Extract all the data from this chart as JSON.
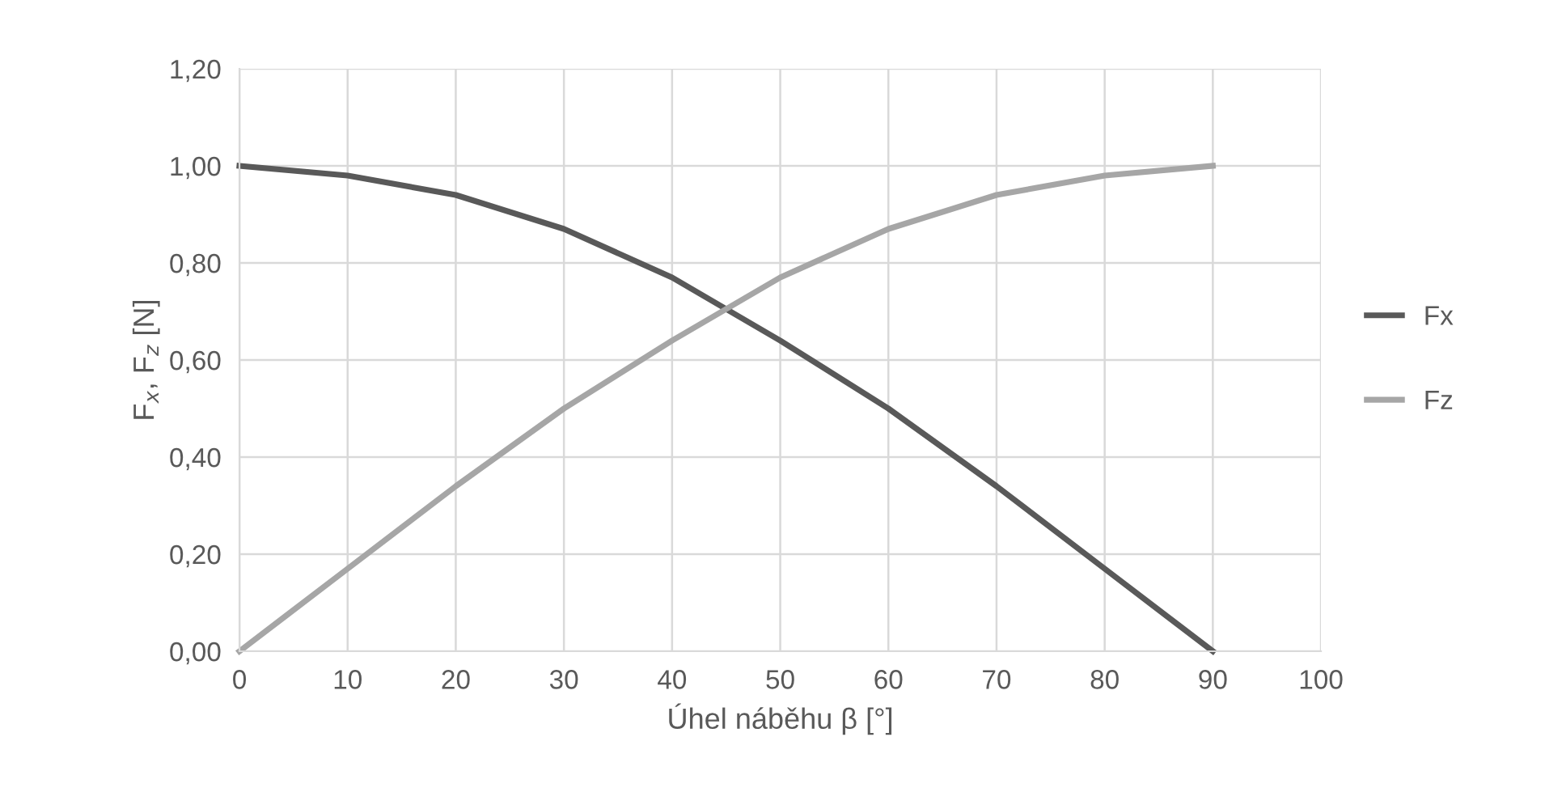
{
  "chart_data": {
    "type": "line",
    "xlabel": "Úhel náběhu β [°]",
    "ylabel": "F$_{x}$, F$_{z}$ [N]",
    "x": [
      0,
      10,
      20,
      30,
      40,
      50,
      60,
      70,
      80,
      90
    ],
    "series": [
      {
        "name": "Fx",
        "color": "#595959",
        "values": [
          1.0,
          0.98,
          0.94,
          0.87,
          0.77,
          0.64,
          0.5,
          0.34,
          0.17,
          0.0
        ]
      },
      {
        "name": "Fz",
        "color": "#a6a6a6",
        "values": [
          0.0,
          0.17,
          0.34,
          0.5,
          0.64,
          0.77,
          0.87,
          0.94,
          0.98,
          1.0
        ]
      }
    ],
    "xlim": [
      0,
      100
    ],
    "xticks": [
      0,
      10,
      20,
      30,
      40,
      50,
      60,
      70,
      80,
      90,
      100
    ],
    "ylim": [
      0,
      1.2
    ],
    "yticks": [
      {
        "value": 0,
        "label": "0,00"
      },
      {
        "value": 0.2,
        "label": "0,20"
      },
      {
        "value": 0.4,
        "label": "0,40"
      },
      {
        "value": 0.6,
        "label": "0,60"
      },
      {
        "value": 0.8,
        "label": "0,80"
      },
      {
        "value": 1.0,
        "label": "1,00"
      },
      {
        "value": 1.2,
        "label": "1,20"
      }
    ],
    "grid": true,
    "legend": "right",
    "marker": "none",
    "line_style": "solid"
  }
}
